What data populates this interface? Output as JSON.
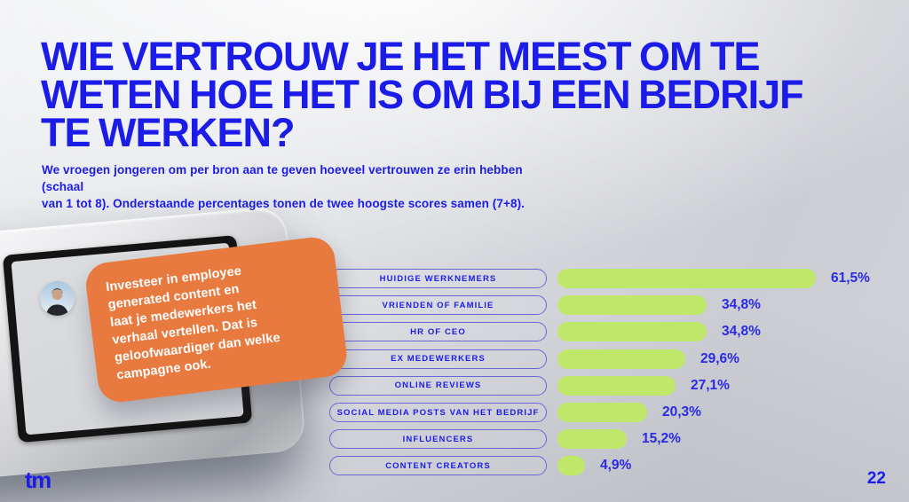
{
  "slide": {
    "title_lines": [
      "WIE VERTROUW JE HET MEEST OM TE",
      "WETEN HOE HET IS OM BIJ EEN BEDRIJF",
      "TE WERKEN?"
    ],
    "subtitle_lines": [
      "We vroegen jongeren om per bron aan te geven hoeveel vertrouwen ze erin hebben (schaal",
      "van 1 tot 8). Onderstaande percentages tonen de twee hoogste scores samen (7+8)."
    ],
    "logo": "tm",
    "page_number": "22"
  },
  "callout": {
    "quote": "Investeer in employee generated content en laat je medewerkers het verhaal vertellen. Dat is geloofwaardiger dan welke campagne ook.",
    "quote_lines": [
      "Investeer in employee",
      "generated content en",
      "laat je medewerkers het",
      "verhaal vertellen. Dat is",
      "geloofwaardiger dan welke",
      "campagne ook."
    ],
    "avatar": "person-photo"
  },
  "chart_data": {
    "type": "bar",
    "orientation": "horizontal",
    "categories": [
      "HUIDIGE WERKNEMERS",
      "VRIENDEN OF FAMILIE",
      "HR OF CEO",
      "EX MEDEWERKERS",
      "ONLINE REVIEWS",
      "SOCIAL MEDIA POSTS VAN HET BEDRIJF",
      "INFLUENCERS",
      "CONTENT CREATORS"
    ],
    "values": [
      61.5,
      34.8,
      34.8,
      29.6,
      27.1,
      20.3,
      15.2,
      4.9
    ],
    "value_labels": [
      "61,5%",
      "34,8%",
      "34,8%",
      "29,6%",
      "27,1%",
      "20,3%",
      "15,2%",
      "4,9%"
    ],
    "xlim": [
      0,
      65
    ],
    "grid": false,
    "legend": false,
    "bar_color": "#bfe76a",
    "label_color": "#1b1ce8"
  },
  "colors": {
    "accent_blue": "#1b1ce8",
    "pill_border": "#6a66d9",
    "bar_green": "#bfe76a",
    "callout_orange": "#e8793f",
    "background_silver": "#d2d4d9"
  }
}
